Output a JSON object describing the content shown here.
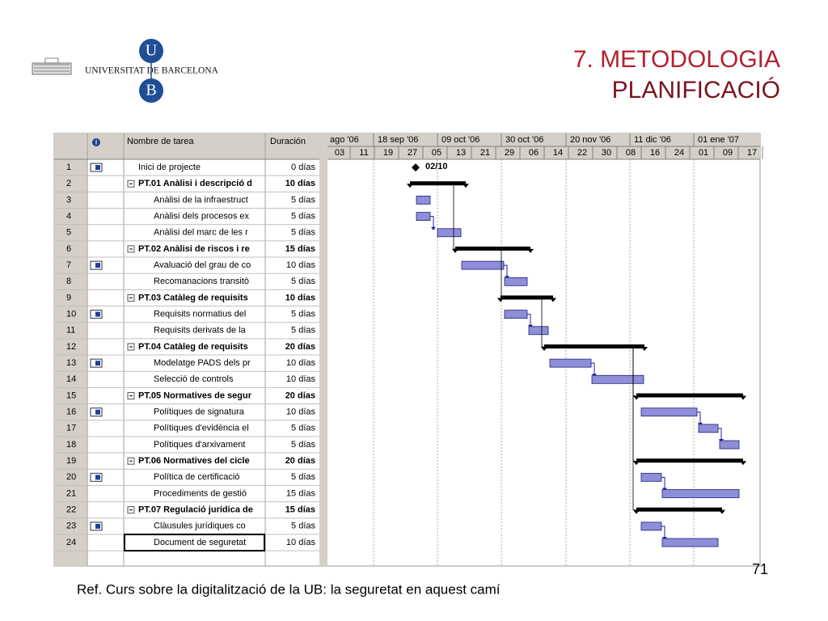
{
  "logo": {
    "name": "UNIVERSITAT DE BARCELONA",
    "letter_top": "U",
    "letter_bottom": "B"
  },
  "header": {
    "title": "7. METODOLOGIA",
    "subtitle": "PLANIFICACIÓ"
  },
  "gantt": {
    "columns": {
      "name": "Nombre de tarea",
      "duration": "Duración"
    },
    "months": [
      "ago '06",
      "18 sep '06",
      "09 oct '06",
      "30 oct '06",
      "20 nov '06",
      "11 dic '06",
      "01 ene '07"
    ],
    "weeks": [
      "03",
      "11",
      "19",
      "27",
      "05",
      "13",
      "21",
      "29",
      "06",
      "14",
      "22",
      "30",
      "08",
      "16",
      "24",
      "01",
      "09",
      "17"
    ],
    "milestone_label": "02/10",
    "rows": [
      {
        "id": "1",
        "name": "Inici de projecte",
        "duration": "0 días",
        "summary": false,
        "icon": true
      },
      {
        "id": "2",
        "name": "PT.01 Anàlisi i descripció d",
        "duration": "10 días",
        "summary": true,
        "icon": false
      },
      {
        "id": "3",
        "name": "Anàlisi de la infraestruct",
        "duration": "5 días",
        "summary": false,
        "icon": false
      },
      {
        "id": "4",
        "name": "Anàlisi dels procesos ex",
        "duration": "5 días",
        "summary": false,
        "icon": false
      },
      {
        "id": "5",
        "name": "Anàlisi del marc de les r",
        "duration": "5 días",
        "summary": false,
        "icon": false
      },
      {
        "id": "6",
        "name": "PT.02 Anàlisi de riscos i re",
        "duration": "15 días",
        "summary": true,
        "icon": false
      },
      {
        "id": "7",
        "name": "Avaluació del grau de co",
        "duration": "10 días",
        "summary": false,
        "icon": true
      },
      {
        "id": "8",
        "name": "Recomanacions transitò",
        "duration": "5 días",
        "summary": false,
        "icon": false
      },
      {
        "id": "9",
        "name": "PT.03 Catàleg de requisits",
        "duration": "10 días",
        "summary": true,
        "icon": false
      },
      {
        "id": "10",
        "name": "Requisits normatius del",
        "duration": "5 días",
        "summary": false,
        "icon": true
      },
      {
        "id": "11",
        "name": "Requisits derivats de la",
        "duration": "5 días",
        "summary": false,
        "icon": false
      },
      {
        "id": "12",
        "name": "PT.04 Catàleg de requisits",
        "duration": "20 días",
        "summary": true,
        "icon": false
      },
      {
        "id": "13",
        "name": "Modelatge PADS dels pr",
        "duration": "10 días",
        "summary": false,
        "icon": true
      },
      {
        "id": "14",
        "name": "Selecció de controls",
        "duration": "10 días",
        "summary": false,
        "icon": false
      },
      {
        "id": "15",
        "name": "PT.05 Normatives de segur",
        "duration": "20 días",
        "summary": true,
        "icon": false
      },
      {
        "id": "16",
        "name": "Polítiques de signatura",
        "duration": "10 días",
        "summary": false,
        "icon": true
      },
      {
        "id": "17",
        "name": "Polítiques d'evidència el",
        "duration": "5 días",
        "summary": false,
        "icon": false
      },
      {
        "id": "18",
        "name": "Polítiques d'arxivament",
        "duration": "5 días",
        "summary": false,
        "icon": false
      },
      {
        "id": "19",
        "name": "PT.06 Normatives del cicle",
        "duration": "20 días",
        "summary": true,
        "icon": false
      },
      {
        "id": "20",
        "name": "Política de certificació",
        "duration": "5 días",
        "summary": false,
        "icon": true
      },
      {
        "id": "21",
        "name": "Procediments de gestió",
        "duration": "15 días",
        "summary": false,
        "icon": false
      },
      {
        "id": "22",
        "name": "PT.07 Regulació jurídica de",
        "duration": "15 días",
        "summary": true,
        "icon": false
      },
      {
        "id": "23",
        "name": "Clàusules jurídiques co",
        "duration": "5 días",
        "summary": false,
        "icon": true
      },
      {
        "id": "24",
        "name": "Document de seguretat",
        "duration": "10 días",
        "summary": false,
        "icon": false
      }
    ]
  },
  "footer": {
    "reference": "Ref. Curs sobre la digitalització de la UB: la seguretat en aquest camí",
    "page": "71"
  }
}
